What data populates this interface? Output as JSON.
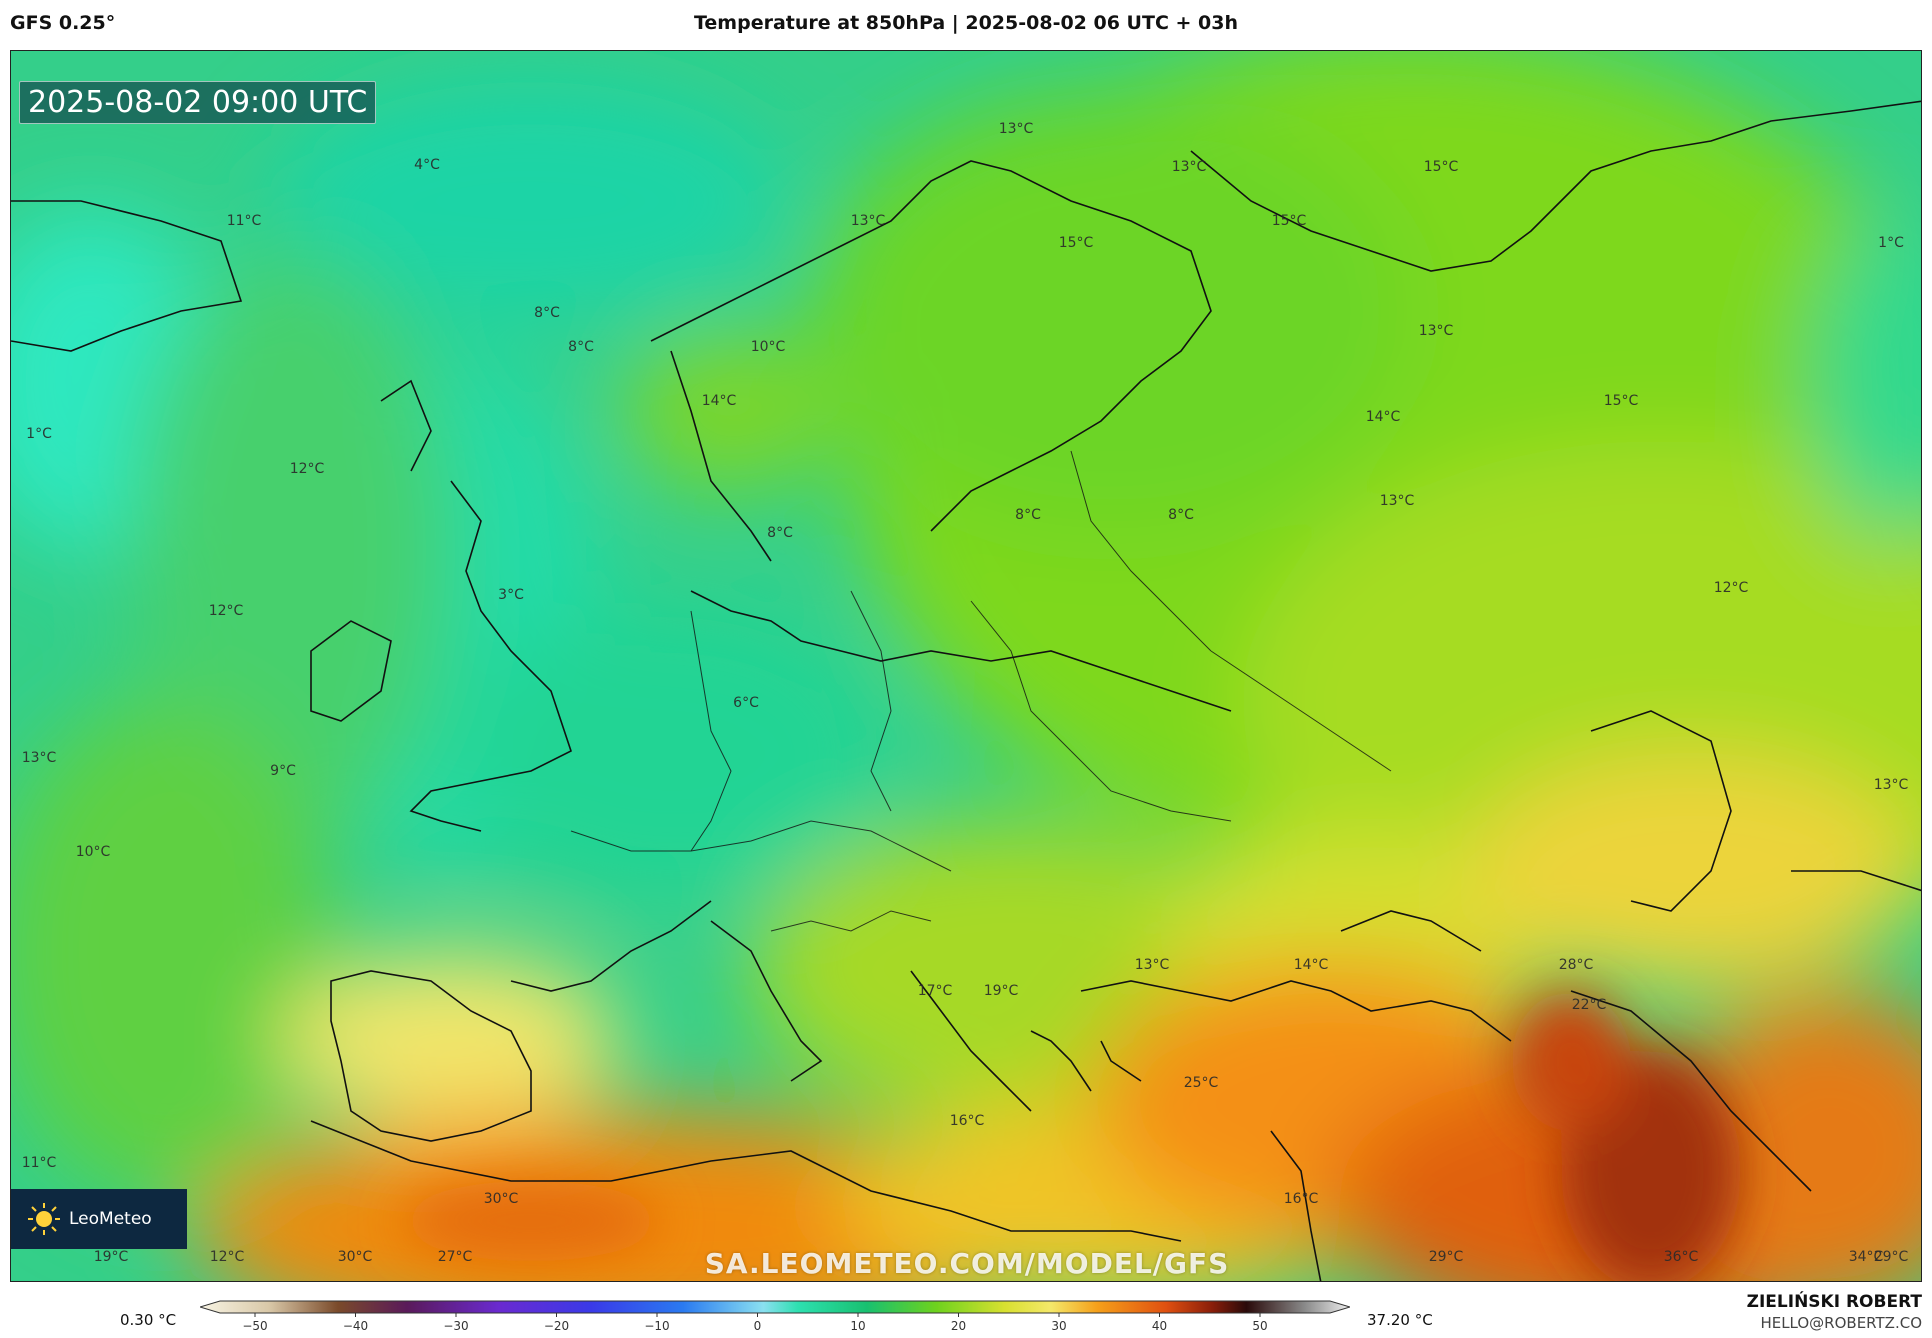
{
  "header": {
    "model": "GFS 0.25°",
    "title": "Temperature at 850hPa | 2025-08-02 06 UTC + 03h"
  },
  "map": {
    "valid_time": "2025-08-02 09:00 UTC",
    "watermark": "SA.LEOMETEO.COM/MODEL/GFS",
    "logo_text": "LeoMeteo",
    "labels": [
      {
        "t": "4°C"
      },
      {
        "t": "11°C"
      },
      {
        "t": "13°C"
      },
      {
        "t": "13°C"
      },
      {
        "t": "15°C"
      },
      {
        "t": "13°C"
      },
      {
        "t": "15°C"
      },
      {
        "t": "15°C"
      },
      {
        "t": "1°C"
      },
      {
        "t": "8°C"
      },
      {
        "t": "8°C"
      },
      {
        "t": "10°C"
      },
      {
        "t": "13°C"
      },
      {
        "t": "14°C"
      },
      {
        "t": "1°C"
      },
      {
        "t": "14°C"
      },
      {
        "t": "15°C"
      },
      {
        "t": "12°C"
      },
      {
        "t": "13°C"
      },
      {
        "t": "8°C"
      },
      {
        "t": "8°C"
      },
      {
        "t": "8°C"
      },
      {
        "t": "12°C"
      },
      {
        "t": "3°C"
      },
      {
        "t": "12°C"
      },
      {
        "t": "6°C"
      },
      {
        "t": "13°C"
      },
      {
        "t": "9°C"
      },
      {
        "t": "13°C"
      },
      {
        "t": "10°C"
      },
      {
        "t": "13°C"
      },
      {
        "t": "14°C"
      },
      {
        "t": "28°C"
      },
      {
        "t": "17°C"
      },
      {
        "t": "19°C"
      },
      {
        "t": "22°C"
      },
      {
        "t": "25°C"
      },
      {
        "t": "16°C"
      },
      {
        "t": "11°C"
      },
      {
        "t": "30°C"
      },
      {
        "t": "16°C"
      },
      {
        "t": "19°C"
      },
      {
        "t": "12°C"
      },
      {
        "t": "30°C"
      },
      {
        "t": "27°C"
      },
      {
        "t": "29°C"
      },
      {
        "t": "36°C"
      },
      {
        "t": "34°C"
      },
      {
        "t": "29°C"
      }
    ]
  },
  "legend": {
    "min": "0.30 °C",
    "max": "37.20 °C",
    "ticks": [
      "−50",
      "−40",
      "−30",
      "−20",
      "−10",
      "0",
      "10",
      "20",
      "30",
      "40",
      "50"
    ]
  },
  "credit": {
    "name": "ZIELIŃSKI ROBERT",
    "email": "HELLO@ROBERTZ.CO"
  }
}
